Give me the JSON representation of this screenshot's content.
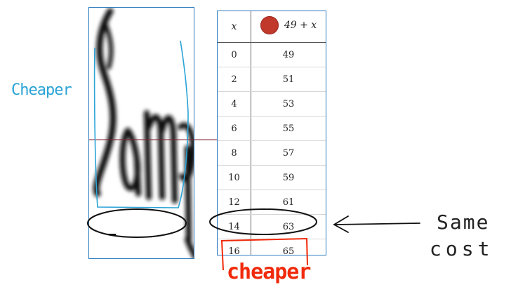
{
  "table": {
    "header_x": "x",
    "header_expr": "49 + x",
    "series_color": "#c0392b",
    "rows": [
      {
        "x": "0",
        "y": "49"
      },
      {
        "x": "2",
        "y": "51"
      },
      {
        "x": "4",
        "y": "53"
      },
      {
        "x": "6",
        "y": "55"
      },
      {
        "x": "8",
        "y": "57"
      },
      {
        "x": "10",
        "y": "59"
      },
      {
        "x": "12",
        "y": "61"
      },
      {
        "x": "14",
        "y": "63"
      },
      {
        "x": "16",
        "y": "65"
      }
    ]
  },
  "annotations": {
    "cheaper_left": "Cheaper",
    "same": "Same",
    "cost": "cost",
    "cheaper_bottom": "cheaper",
    "colors": {
      "blue": "#2aa3d6",
      "red": "#f02a0a",
      "black": "#222222"
    }
  }
}
